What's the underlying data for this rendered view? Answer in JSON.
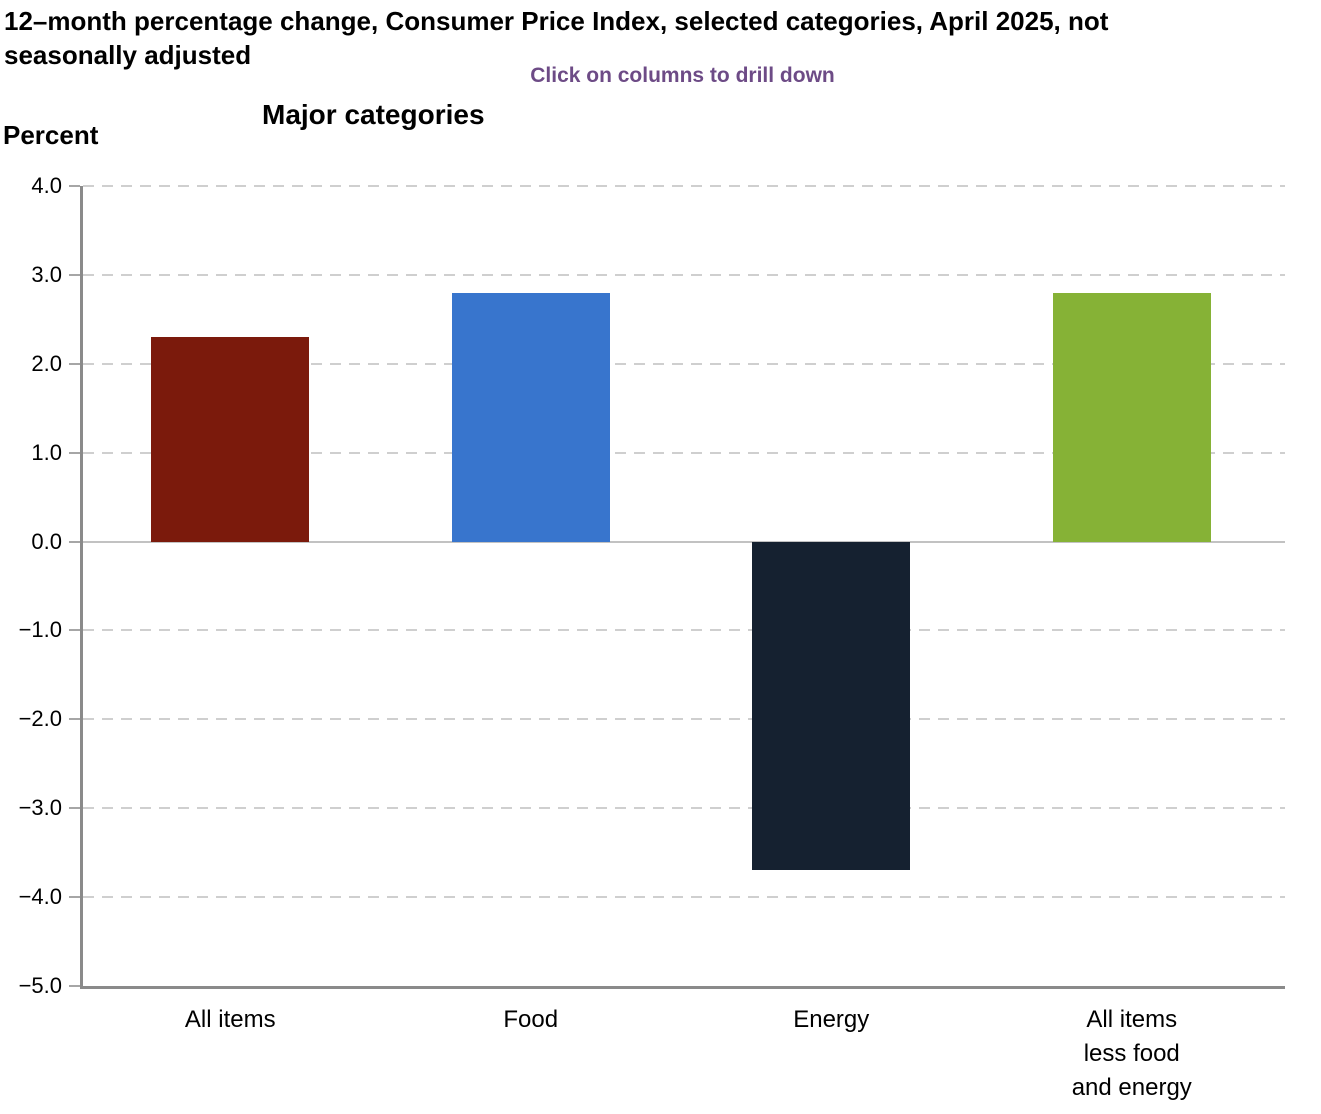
{
  "header": {
    "title": "12–month percentage change, Consumer Price Index, selected categories, April 2025, not seasonally adjusted",
    "hint": "Click on columns to drill down",
    "axis_unit_label": "Percent",
    "chart_heading": "Major categories"
  },
  "colors": {
    "hint_text": "#6d4b86",
    "axis_line": "#8a8a8a",
    "gridline": "#cfcfcf",
    "zero_line": "#c2c2c2",
    "bar_all_items": "#7b1a0c",
    "bar_food": "#3875cd",
    "bar_energy": "#152130",
    "bar_core": "#86b236"
  },
  "chart_data": {
    "type": "bar",
    "title": "Major categories",
    "categories": [
      "All items",
      "Food",
      "Energy",
      "All items less food and energy"
    ],
    "category_label_lines": [
      [
        "All items"
      ],
      [
        "Food"
      ],
      [
        "Energy"
      ],
      [
        "All items",
        "less food",
        "and energy"
      ]
    ],
    "values": [
      2.3,
      2.8,
      -3.7,
      2.8
    ],
    "bar_colors": [
      "#7b1a0c",
      "#3875cd",
      "#152130",
      "#86b236"
    ],
    "xlabel": "",
    "ylabel": "Percent",
    "ylim": [
      -5.0,
      4.0
    ],
    "ytick_step": 1.0,
    "ytick_labels": [
      "−5.0",
      "−4.0",
      "−3.0",
      "−2.0",
      "−1.0",
      "0.0",
      "1.0",
      "2.0",
      "3.0",
      "4.0"
    ],
    "grid": "horizontal-dashed",
    "legend": "none",
    "interaction_note": "columns are clickable to drill down"
  }
}
